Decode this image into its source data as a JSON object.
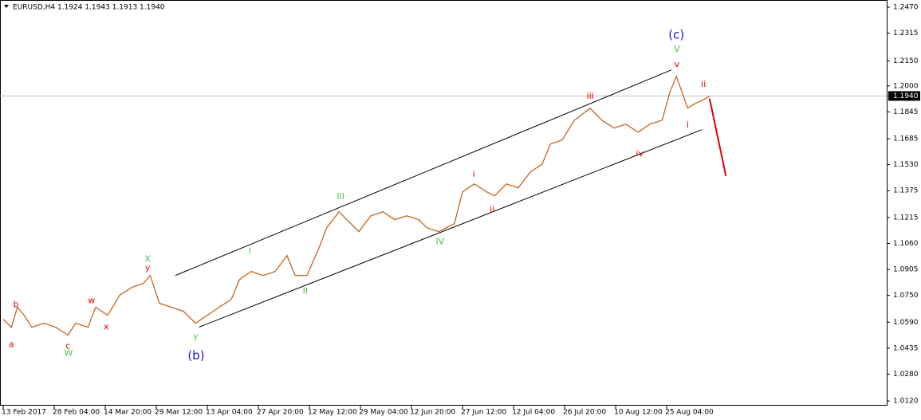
{
  "chart_data": {
    "type": "line",
    "title": "EURUSD,H4  1.1924 1.1943 1.1913 1.1940",
    "color": "#c8641e",
    "x": [
      0,
      0.16,
      0.28,
      0.41,
      0.56,
      0.8,
      1.03,
      1.27,
      1.42,
      1.66,
      1.81,
      2.05,
      2.28,
      2.52,
      2.75,
      2.88,
      3.06,
      3.3,
      3.53,
      3.77,
      4,
      4.23,
      4.47,
      4.63,
      4.86,
      5.09,
      5.33,
      5.56,
      5.72,
      5.95,
      6.19,
      6.34,
      6.58,
      6.73,
      6.97,
      7.2,
      7.44,
      7.67,
      7.91,
      8.14,
      8.3,
      8.53,
      8.84,
      9,
      9.23,
      9.47,
      9.63,
      9.86,
      10.09,
      10.33,
      10.56,
      10.72,
      10.95,
      11.19,
      11.5,
      11.73,
      11.97,
      12.2,
      12.44,
      12.67,
      12.91,
      13.06,
      13.19,
      13.3,
      13.41,
      13.53,
      13.69,
      13.84
    ],
    "values": [
      1.0608,
      1.056,
      1.0679,
      1.0632,
      1.056,
      1.0584,
      1.056,
      1.0513,
      1.0584,
      1.056,
      1.0679,
      1.0632,
      1.075,
      1.0798,
      1.0822,
      1.0869,
      1.0703,
      1.0679,
      1.0655,
      1.0584,
      1.0632,
      1.0679,
      1.0727,
      1.0845,
      1.0893,
      1.0869,
      1.0893,
      1.0988,
      1.0869,
      1.0869,
      1.1035,
      1.1154,
      1.1249,
      1.1202,
      1.113,
      1.1225,
      1.1249,
      1.1202,
      1.1225,
      1.1202,
      1.1154,
      1.113,
      1.1178,
      1.1368,
      1.1415,
      1.1368,
      1.1344,
      1.1415,
      1.1392,
      1.1487,
      1.1534,
      1.1653,
      1.1677,
      1.1795,
      1.1867,
      1.1795,
      1.1748,
      1.1772,
      1.1724,
      1.1772,
      1.1795,
      1.1962,
      1.2057,
      1.1962,
      1.1867,
      1.189,
      1.1914,
      1.1938
    ],
    "xlim": [
      0,
      17.31
    ],
    "ylim": [
      1.0092,
      1.2508
    ],
    "xticks": [
      {
        "value": 0,
        "label": "13 Feb 2017"
      },
      {
        "value": 1,
        "label": "28 Feb 04:00"
      },
      {
        "value": 2,
        "label": "14 Mar 20:00"
      },
      {
        "value": 3,
        "label": "29 Mar 12:00"
      },
      {
        "value": 4,
        "label": "13 Apr 04:00"
      },
      {
        "value": 5,
        "label": "27 Apr 20:00"
      },
      {
        "value": 6,
        "label": "12 May 12:00"
      },
      {
        "value": 7,
        "label": "29 May 04:00"
      },
      {
        "value": 8,
        "label": "12 Jun 20:00"
      },
      {
        "value": 9,
        "label": "27 Jun 12:00"
      },
      {
        "value": 10,
        "label": "12 Jul 04:00"
      },
      {
        "value": 11,
        "label": "26 Jul 20:00"
      },
      {
        "value": 12,
        "label": "10 Aug 12:00"
      },
      {
        "value": 13,
        "label": "25 Aug 04:00"
      }
    ],
    "yticks": [
      {
        "value": 1.247,
        "label": "1.2470"
      },
      {
        "value": 1.2315,
        "label": "1.2315"
      },
      {
        "value": 1.215,
        "label": "1.2150"
      },
      {
        "value": 1.2,
        "label": "1.2000"
      },
      {
        "value": 1.1845,
        "label": "1.1845"
      },
      {
        "value": 1.1685,
        "label": "1.1685"
      },
      {
        "value": 1.153,
        "label": "1.1530"
      },
      {
        "value": 1.1375,
        "label": "1.1375"
      },
      {
        "value": 1.1215,
        "label": "1.1215"
      },
      {
        "value": 1.106,
        "label": "1.1060"
      },
      {
        "value": 1.0905,
        "label": "1.0905"
      },
      {
        "value": 1.075,
        "label": "1.0750"
      },
      {
        "value": 1.059,
        "label": "1.0590"
      },
      {
        "value": 1.0435,
        "label": "1.0435"
      },
      {
        "value": 1.028,
        "label": "1.0280"
      },
      {
        "value": 1.012,
        "label": "1.0120"
      }
    ],
    "last_price": {
      "value": 1.194,
      "label": "1.1940"
    },
    "trendlines": [
      {
        "color": "#000000",
        "x": [
          3.375,
          13.09
        ],
        "y": [
          1.0869,
          1.2095
        ]
      },
      {
        "color": "#000000",
        "x": [
          3.84,
          13.69
        ],
        "y": [
          1.0561,
          1.1739
        ]
      },
      {
        "color": "#e00000",
        "x": [
          13.84,
          14.16
        ],
        "y": [
          1.1924,
          1.1463
        ]
      }
    ],
    "annotations": [
      {
        "text": "a",
        "color": "#e00000",
        "x": 0.16,
        "y": 1.0456
      },
      {
        "text": "b",
        "color": "#e00000",
        "x": 0.25,
        "y": 1.0693
      },
      {
        "text": "c",
        "color": "#e00000",
        "x": 1.27,
        "y": 1.0446
      },
      {
        "text": "W",
        "color": "#4cc44c",
        "x": 1.28,
        "y": 1.0404
      },
      {
        "text": "w",
        "color": "#e00000",
        "x": 1.73,
        "y": 1.0717
      },
      {
        "text": "x",
        "color": "#e00000",
        "x": 2.02,
        "y": 1.0561
      },
      {
        "text": "y",
        "color": "#e00000",
        "x": 2.83,
        "y": 1.0912
      },
      {
        "text": "X",
        "color": "#4cc44c",
        "x": 2.83,
        "y": 1.0964
      },
      {
        "text": "Y",
        "color": "#4cc44c",
        "x": 3.77,
        "y": 1.0494
      },
      {
        "text": "(b)",
        "color": "#1a1adc",
        "x": 3.78,
        "y": 1.0389
      },
      {
        "text": "I",
        "color": "#4cc44c",
        "x": 4.83,
        "y": 1.1012
      },
      {
        "text": "II",
        "color": "#4cc44c",
        "x": 5.92,
        "y": 1.0774
      },
      {
        "text": "III",
        "color": "#4cc44c",
        "x": 6.61,
        "y": 1.1339
      },
      {
        "text": "IV",
        "color": "#4cc44c",
        "x": 8.56,
        "y": 1.1069
      },
      {
        "text": "i",
        "color": "#e00000",
        "x": 9.22,
        "y": 1.1472
      },
      {
        "text": "ii",
        "color": "#e00000",
        "x": 9.58,
        "y": 1.1263
      },
      {
        "text": "iii",
        "color": "#e00000",
        "x": 11.5,
        "y": 1.1938
      },
      {
        "text": "iv",
        "color": "#e00000",
        "x": 12.47,
        "y": 1.1596
      },
      {
        "text": "v",
        "color": "#e00000",
        "x": 13.2,
        "y": 1.2128
      },
      {
        "text": "V",
        "color": "#4cc44c",
        "x": 13.2,
        "y": 1.2218
      },
      {
        "text": "(c)",
        "color": "#1a1adc",
        "x": 13.19,
        "y": 1.2304
      },
      {
        "text": "i",
        "color": "#e00000",
        "x": 13.41,
        "y": 1.1767
      },
      {
        "text": "ii",
        "color": "#e00000",
        "x": 13.72,
        "y": 1.2009
      }
    ]
  }
}
